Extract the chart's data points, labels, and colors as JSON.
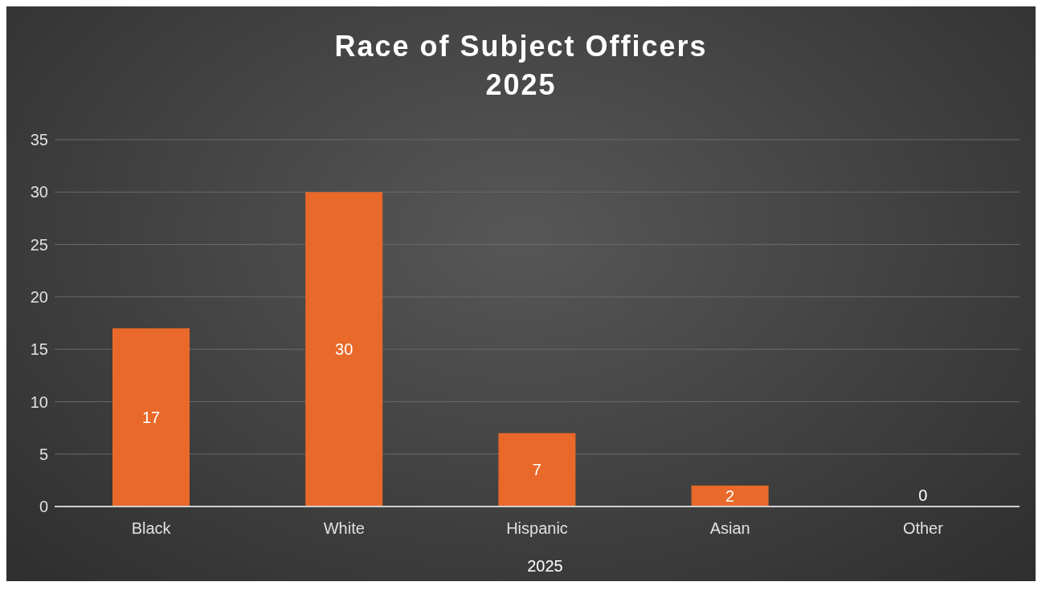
{
  "chart_data": {
    "type": "bar",
    "title": "Race of Subject Officers",
    "subtitle": "2025",
    "xlabel": "2025",
    "categories": [
      "Black",
      "White",
      "Hispanic",
      "Asian",
      "Other"
    ],
    "values": [
      17,
      30,
      7,
      2,
      0
    ],
    "color": "#e8692a",
    "ylim": [
      0,
      35
    ],
    "yticks": [
      0,
      5,
      10,
      15,
      20,
      25,
      30,
      35
    ],
    "grid": "y",
    "data_labels": true
  }
}
